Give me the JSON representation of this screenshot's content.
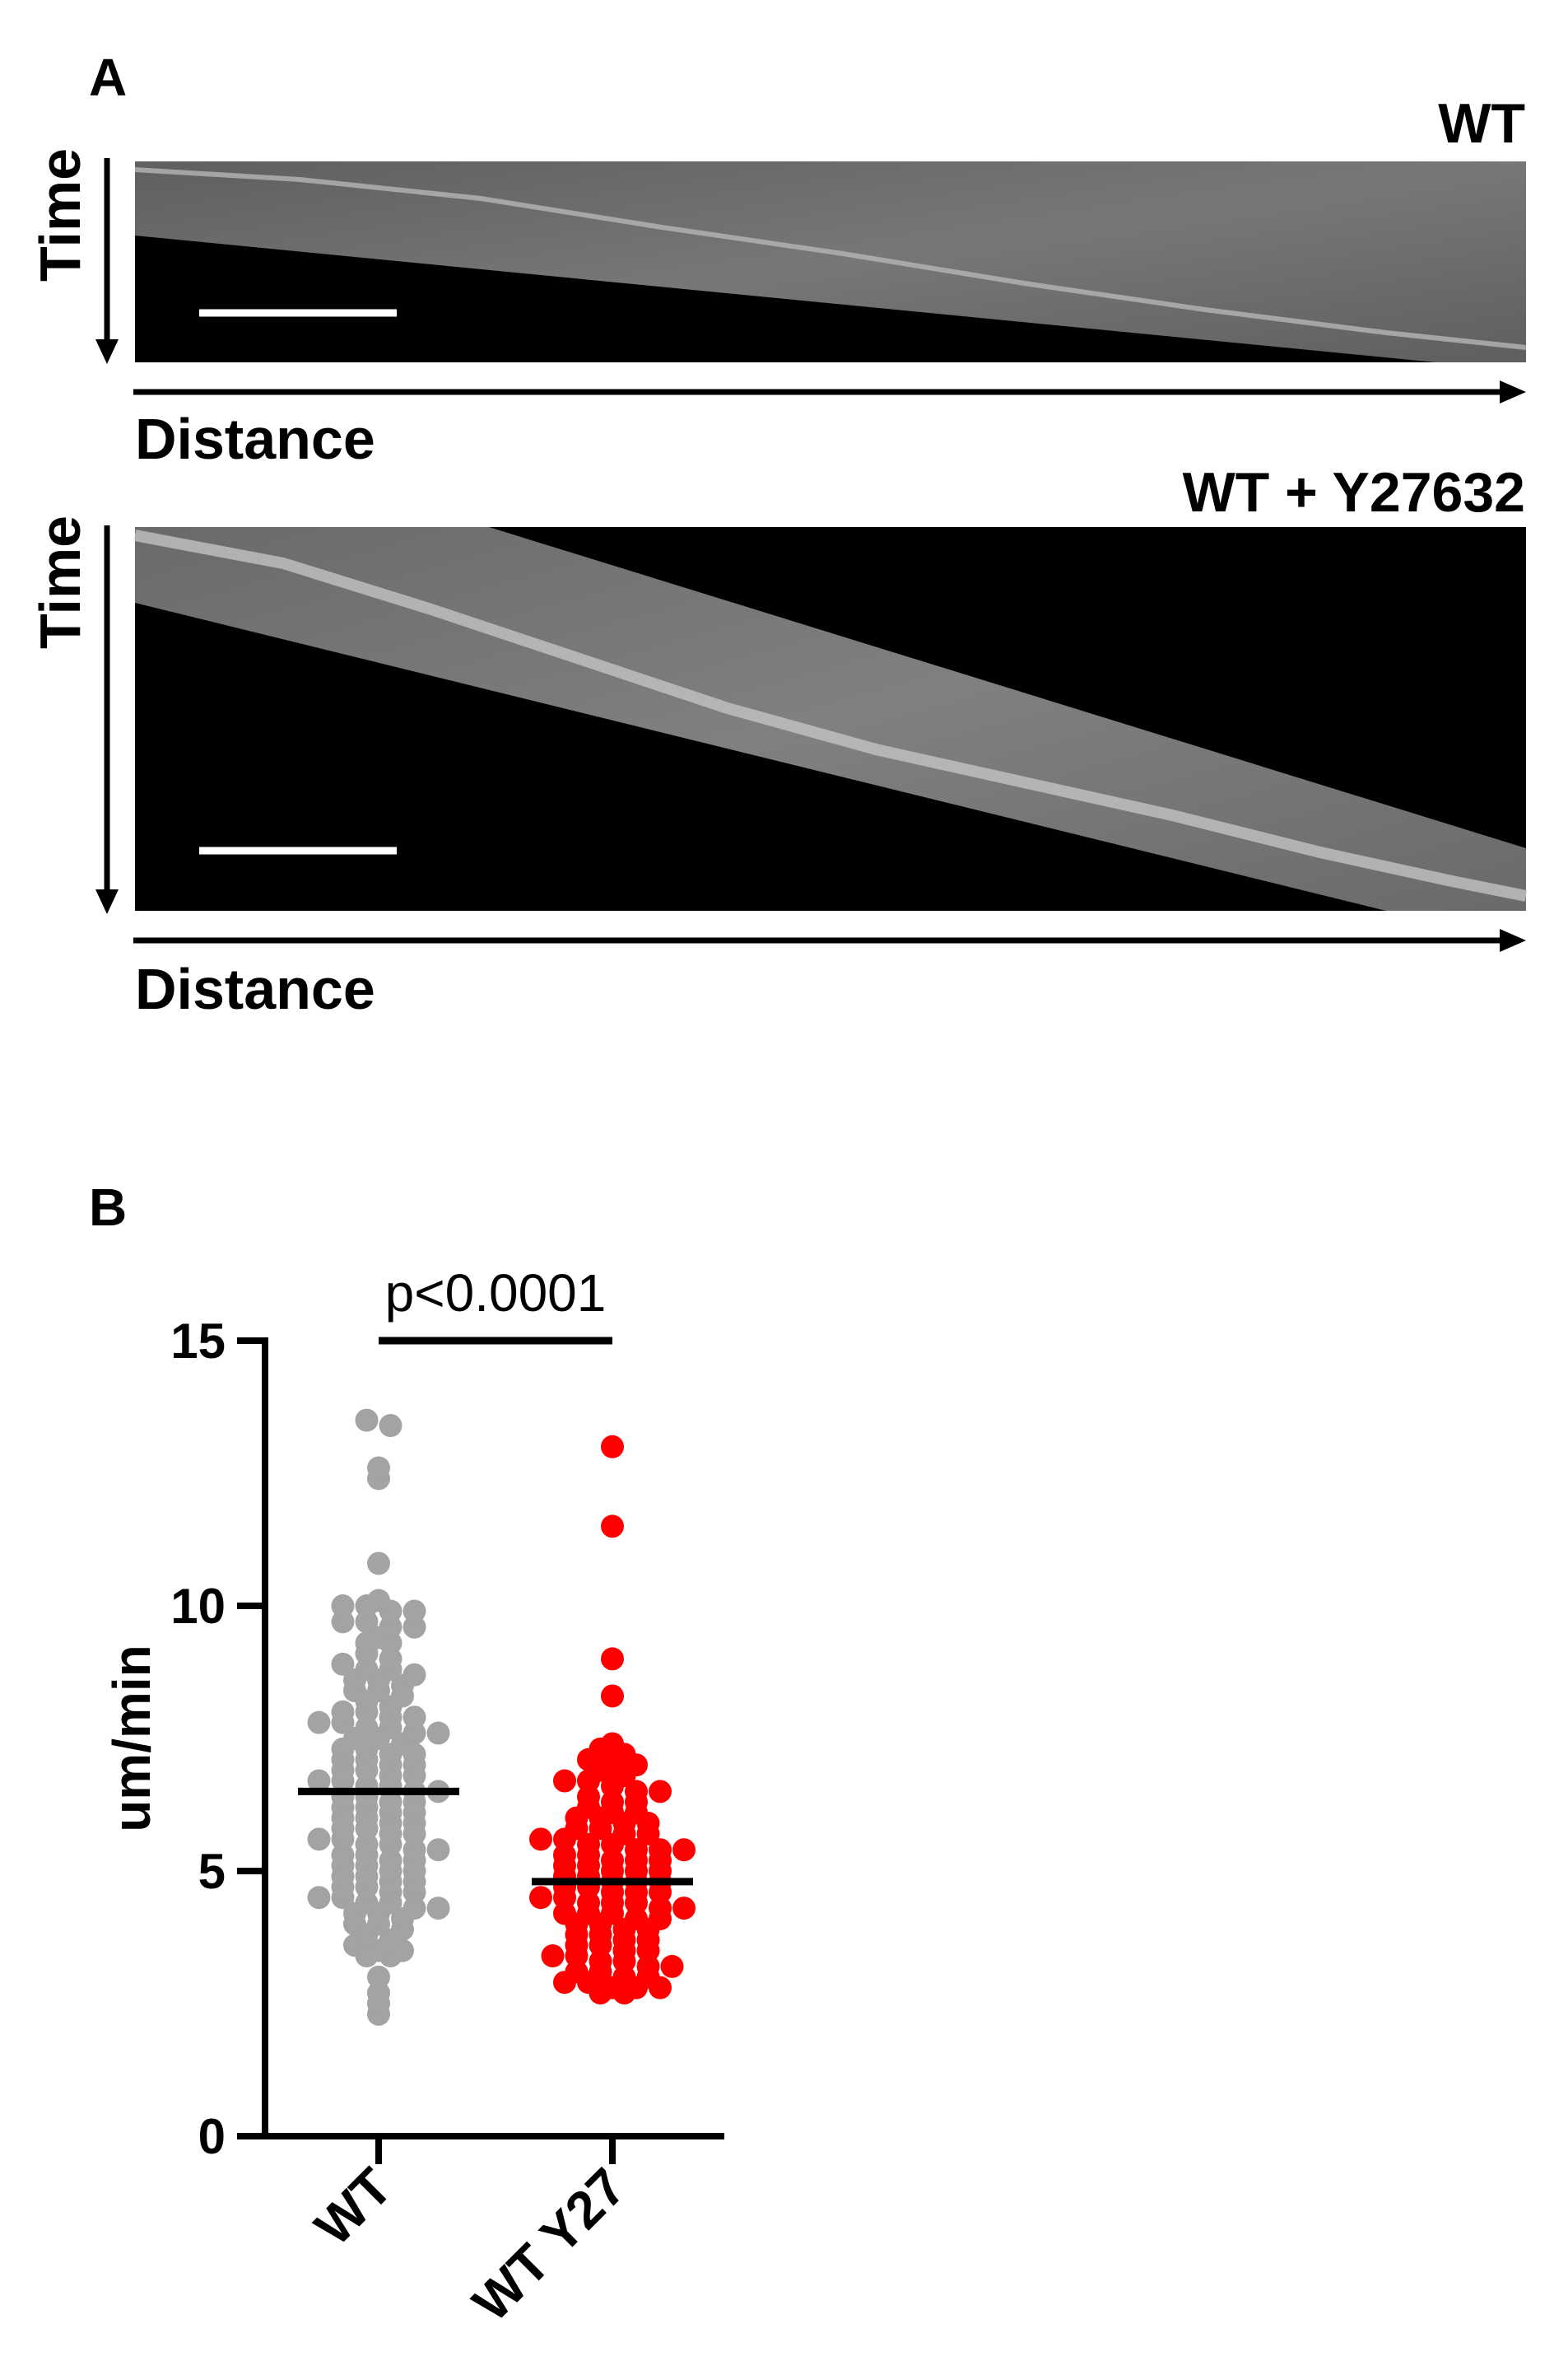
{
  "panel_a": {
    "letter": "A",
    "kymographs": [
      {
        "condition": "WT",
        "time_label": "Time",
        "distance_label": "Distance"
      },
      {
        "condition": "WT + Y27632",
        "time_label": "Time",
        "distance_label": "Distance"
      }
    ]
  },
  "panel_b": {
    "letter": "B",
    "stat_label": "p<0.0001"
  },
  "colors": {
    "wt": "#a3a3a3",
    "y27": "#ff0000",
    "kymo_band": "#6b6b6b",
    "kymo_bg": "#000000"
  },
  "chart_data": {
    "type": "scatter",
    "ylabel": "um/min",
    "ylim": [
      0,
      15
    ],
    "yticks": [
      0,
      5,
      10,
      15
    ],
    "categories": [
      "WT",
      "WT Y27"
    ],
    "series": [
      {
        "name": "WT",
        "mean": 6.5,
        "values": [
          13.5,
          13.4,
          12.6,
          12.4,
          10.8,
          10.1,
          10.0,
          10.0,
          9.9,
          9.9,
          9.7,
          9.7,
          9.6,
          9.6,
          9.4,
          9.3,
          9.3,
          9.1,
          9.0,
          8.9,
          8.8,
          8.8,
          8.7,
          8.6,
          8.6,
          8.5,
          8.4,
          8.4,
          8.3,
          8.2,
          8.1,
          8.0,
          8.0,
          7.9,
          7.9,
          7.8,
          7.8,
          7.7,
          7.7,
          7.6,
          7.6,
          7.5,
          7.5,
          7.4,
          7.3,
          7.3,
          7.2,
          7.2,
          7.1,
          7.1,
          7.0,
          7.0,
          6.9,
          6.9,
          6.8,
          6.8,
          6.7,
          6.7,
          6.6,
          6.6,
          6.5,
          6.5,
          6.4,
          6.4,
          6.3,
          6.3,
          6.2,
          6.2,
          6.1,
          6.1,
          6.0,
          6.0,
          5.9,
          5.9,
          5.8,
          5.8,
          5.7,
          5.7,
          5.6,
          5.6,
          5.5,
          5.5,
          5.4,
          5.4,
          5.3,
          5.3,
          5.2,
          5.2,
          5.1,
          5.1,
          5.0,
          5.0,
          4.9,
          4.9,
          4.8,
          4.8,
          4.7,
          4.7,
          4.6,
          4.6,
          4.5,
          4.5,
          4.4,
          4.4,
          4.3,
          4.3,
          4.2,
          4.2,
          4.1,
          4.0,
          4.0,
          3.9,
          3.8,
          3.7,
          3.6,
          3.5,
          3.5,
          3.4,
          3.4,
          3.0,
          2.7,
          2.5,
          2.3
        ]
      },
      {
        "name": "WT Y27",
        "mean": 4.8,
        "values": [
          13.0,
          11.5,
          9.0,
          8.3,
          7.4,
          7.3,
          7.2,
          7.1,
          7.0,
          7.0,
          6.9,
          6.8,
          6.7,
          6.7,
          6.6,
          6.5,
          6.5,
          6.4,
          6.3,
          6.3,
          6.2,
          6.1,
          6.1,
          6.0,
          6.0,
          5.9,
          5.9,
          5.8,
          5.8,
          5.7,
          5.7,
          5.6,
          5.6,
          5.5,
          5.5,
          5.4,
          5.4,
          5.4,
          5.3,
          5.3,
          5.2,
          5.2,
          5.2,
          5.1,
          5.1,
          5.0,
          5.0,
          5.0,
          4.9,
          4.9,
          4.8,
          4.8,
          4.8,
          4.7,
          4.7,
          4.6,
          4.6,
          4.6,
          4.5,
          4.5,
          4.4,
          4.4,
          4.4,
          4.3,
          4.3,
          4.2,
          4.2,
          4.2,
          4.1,
          4.1,
          4.0,
          4.0,
          3.9,
          3.9,
          3.8,
          3.8,
          3.7,
          3.7,
          3.6,
          3.6,
          3.5,
          3.5,
          3.4,
          3.4,
          3.3,
          3.3,
          3.2,
          3.2,
          3.1,
          3.1,
          3.0,
          3.0,
          2.9,
          2.9,
          2.8,
          2.8,
          2.8,
          2.7,
          2.7
        ]
      }
    ]
  }
}
